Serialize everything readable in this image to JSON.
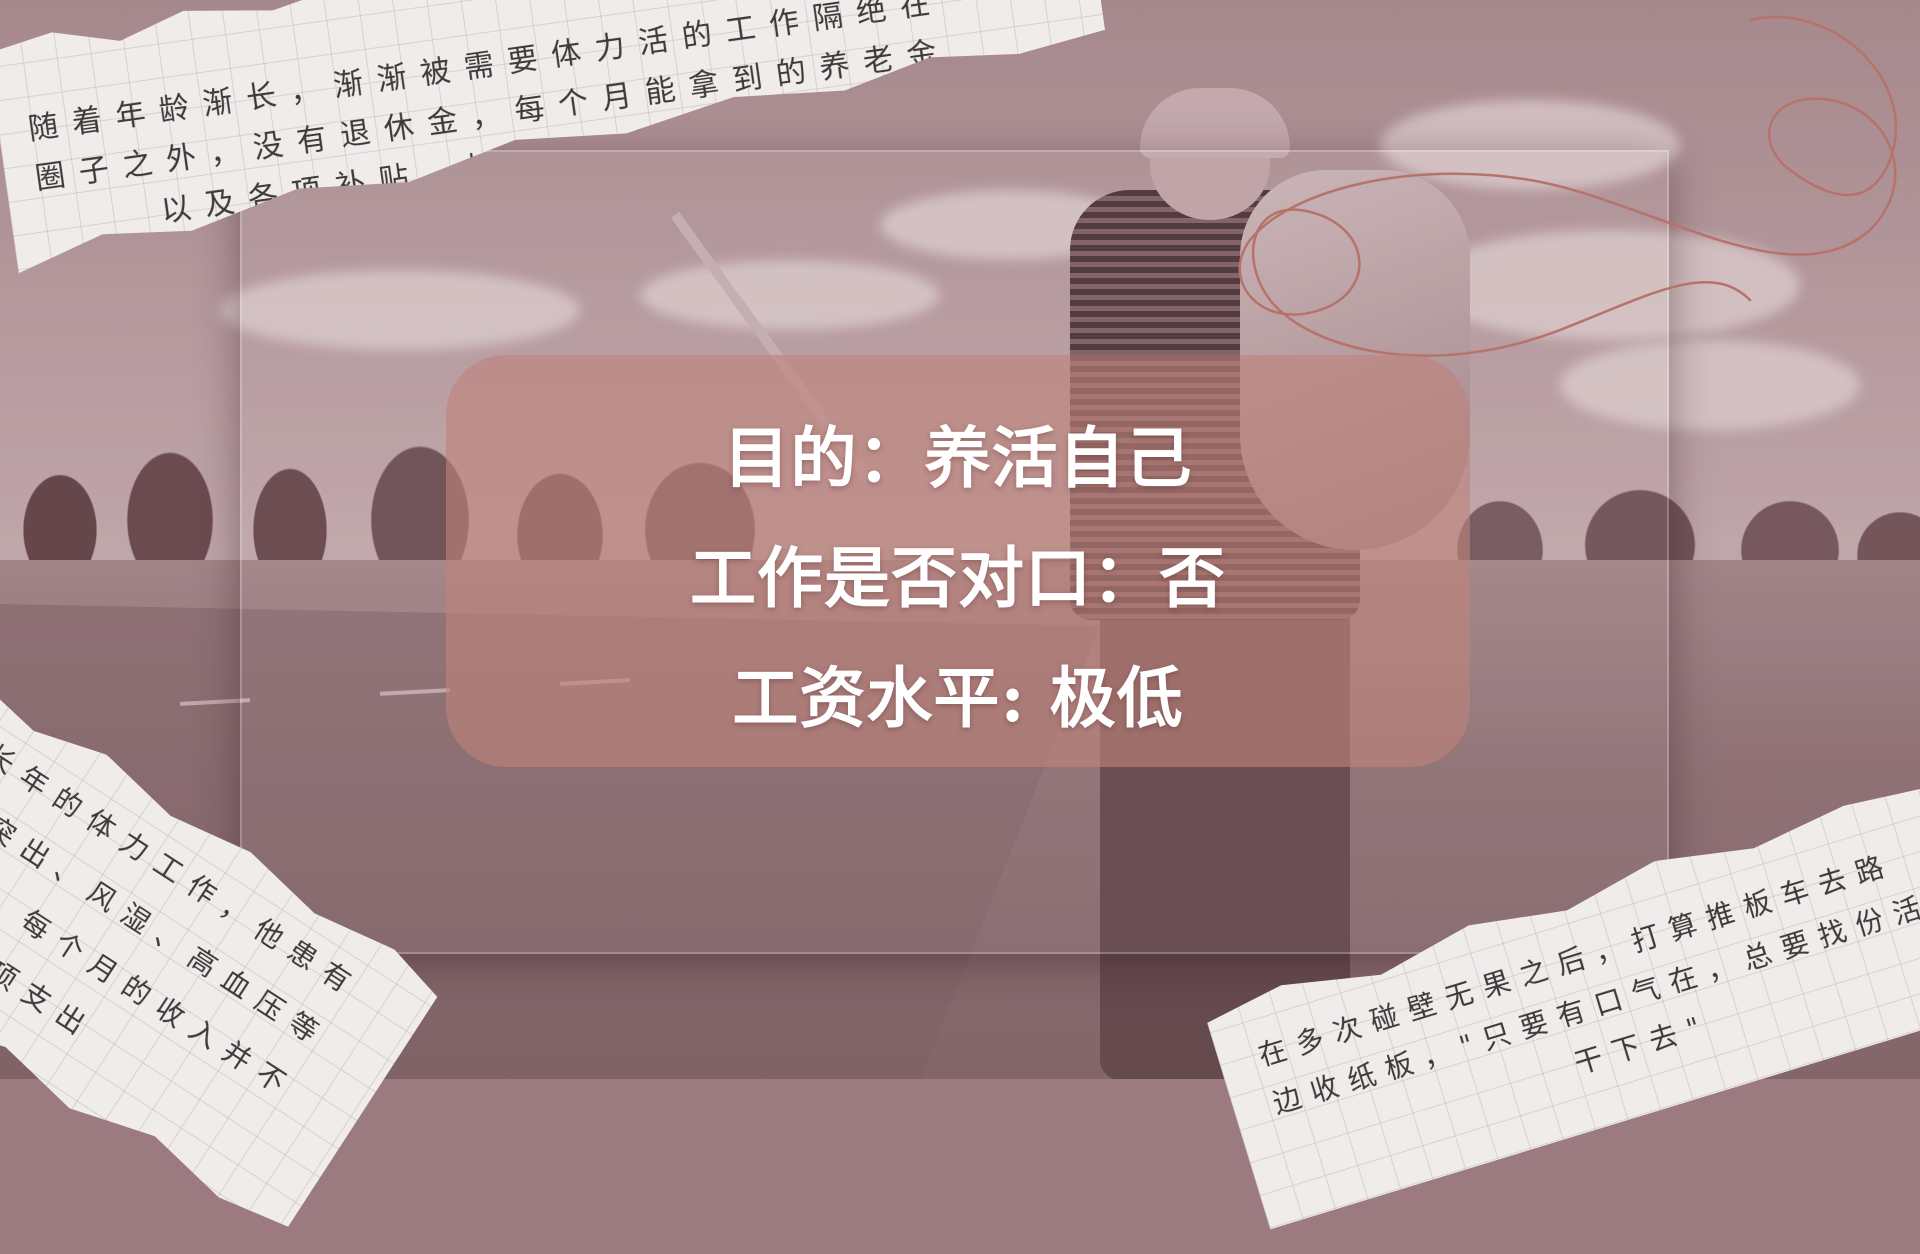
{
  "slide": {
    "lines": [
      "目的：养活自己",
      "工作是否对口：否",
      "工资水平: 极低"
    ]
  },
  "notes": {
    "top": [
      "随着年龄渐长，渐渐被需要体力活的工作隔绝在",
      "圈子之外，没有退休金，每个月能拿到的养老金",
      "以及各项补贴，加起来只有数百元"
    ],
    "left": [
      "因为长年的体力工作，他患有",
      "腰间盘突出、风湿、高血压等",
      "慢性疾病，每个月的收入并不",
      "足以涵盖各项支出"
    ],
    "bottom_right": [
      "在多次碰壁无果之后，打算推板车去路",
      "边收纸板，\"只要有口气在，总要找份活",
      "干下去\""
    ]
  },
  "colors": {
    "tint": "#9c7b80",
    "card": "#be827a",
    "paper": "#efeceb",
    "swirl": "#b5736a"
  }
}
